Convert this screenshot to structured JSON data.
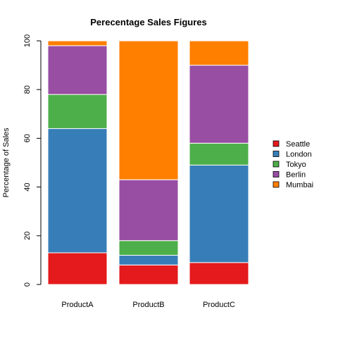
{
  "chart_data": {
    "type": "bar",
    "stacked": true,
    "title": "Perecentage Sales Figures",
    "xlabel": "",
    "ylabel": "Percentage of Sales",
    "ylim": [
      0,
      100
    ],
    "yticks": [
      0,
      20,
      40,
      60,
      80,
      100
    ],
    "grid": false,
    "legend_position": "right",
    "categories": [
      "ProductA",
      "ProductB",
      "ProductC"
    ],
    "series": [
      {
        "name": "Seattle",
        "color": "#E41A1C",
        "values": [
          13,
          8,
          9
        ]
      },
      {
        "name": "London",
        "color": "#377EB8",
        "values": [
          51,
          4,
          40
        ]
      },
      {
        "name": "Tokyo",
        "color": "#4DAF4A",
        "values": [
          14,
          6,
          9
        ]
      },
      {
        "name": "Berlin",
        "color": "#984EA3",
        "values": [
          20,
          25,
          32
        ]
      },
      {
        "name": "Mumbai",
        "color": "#FF7F00",
        "values": [
          2,
          57,
          10
        ]
      }
    ]
  }
}
